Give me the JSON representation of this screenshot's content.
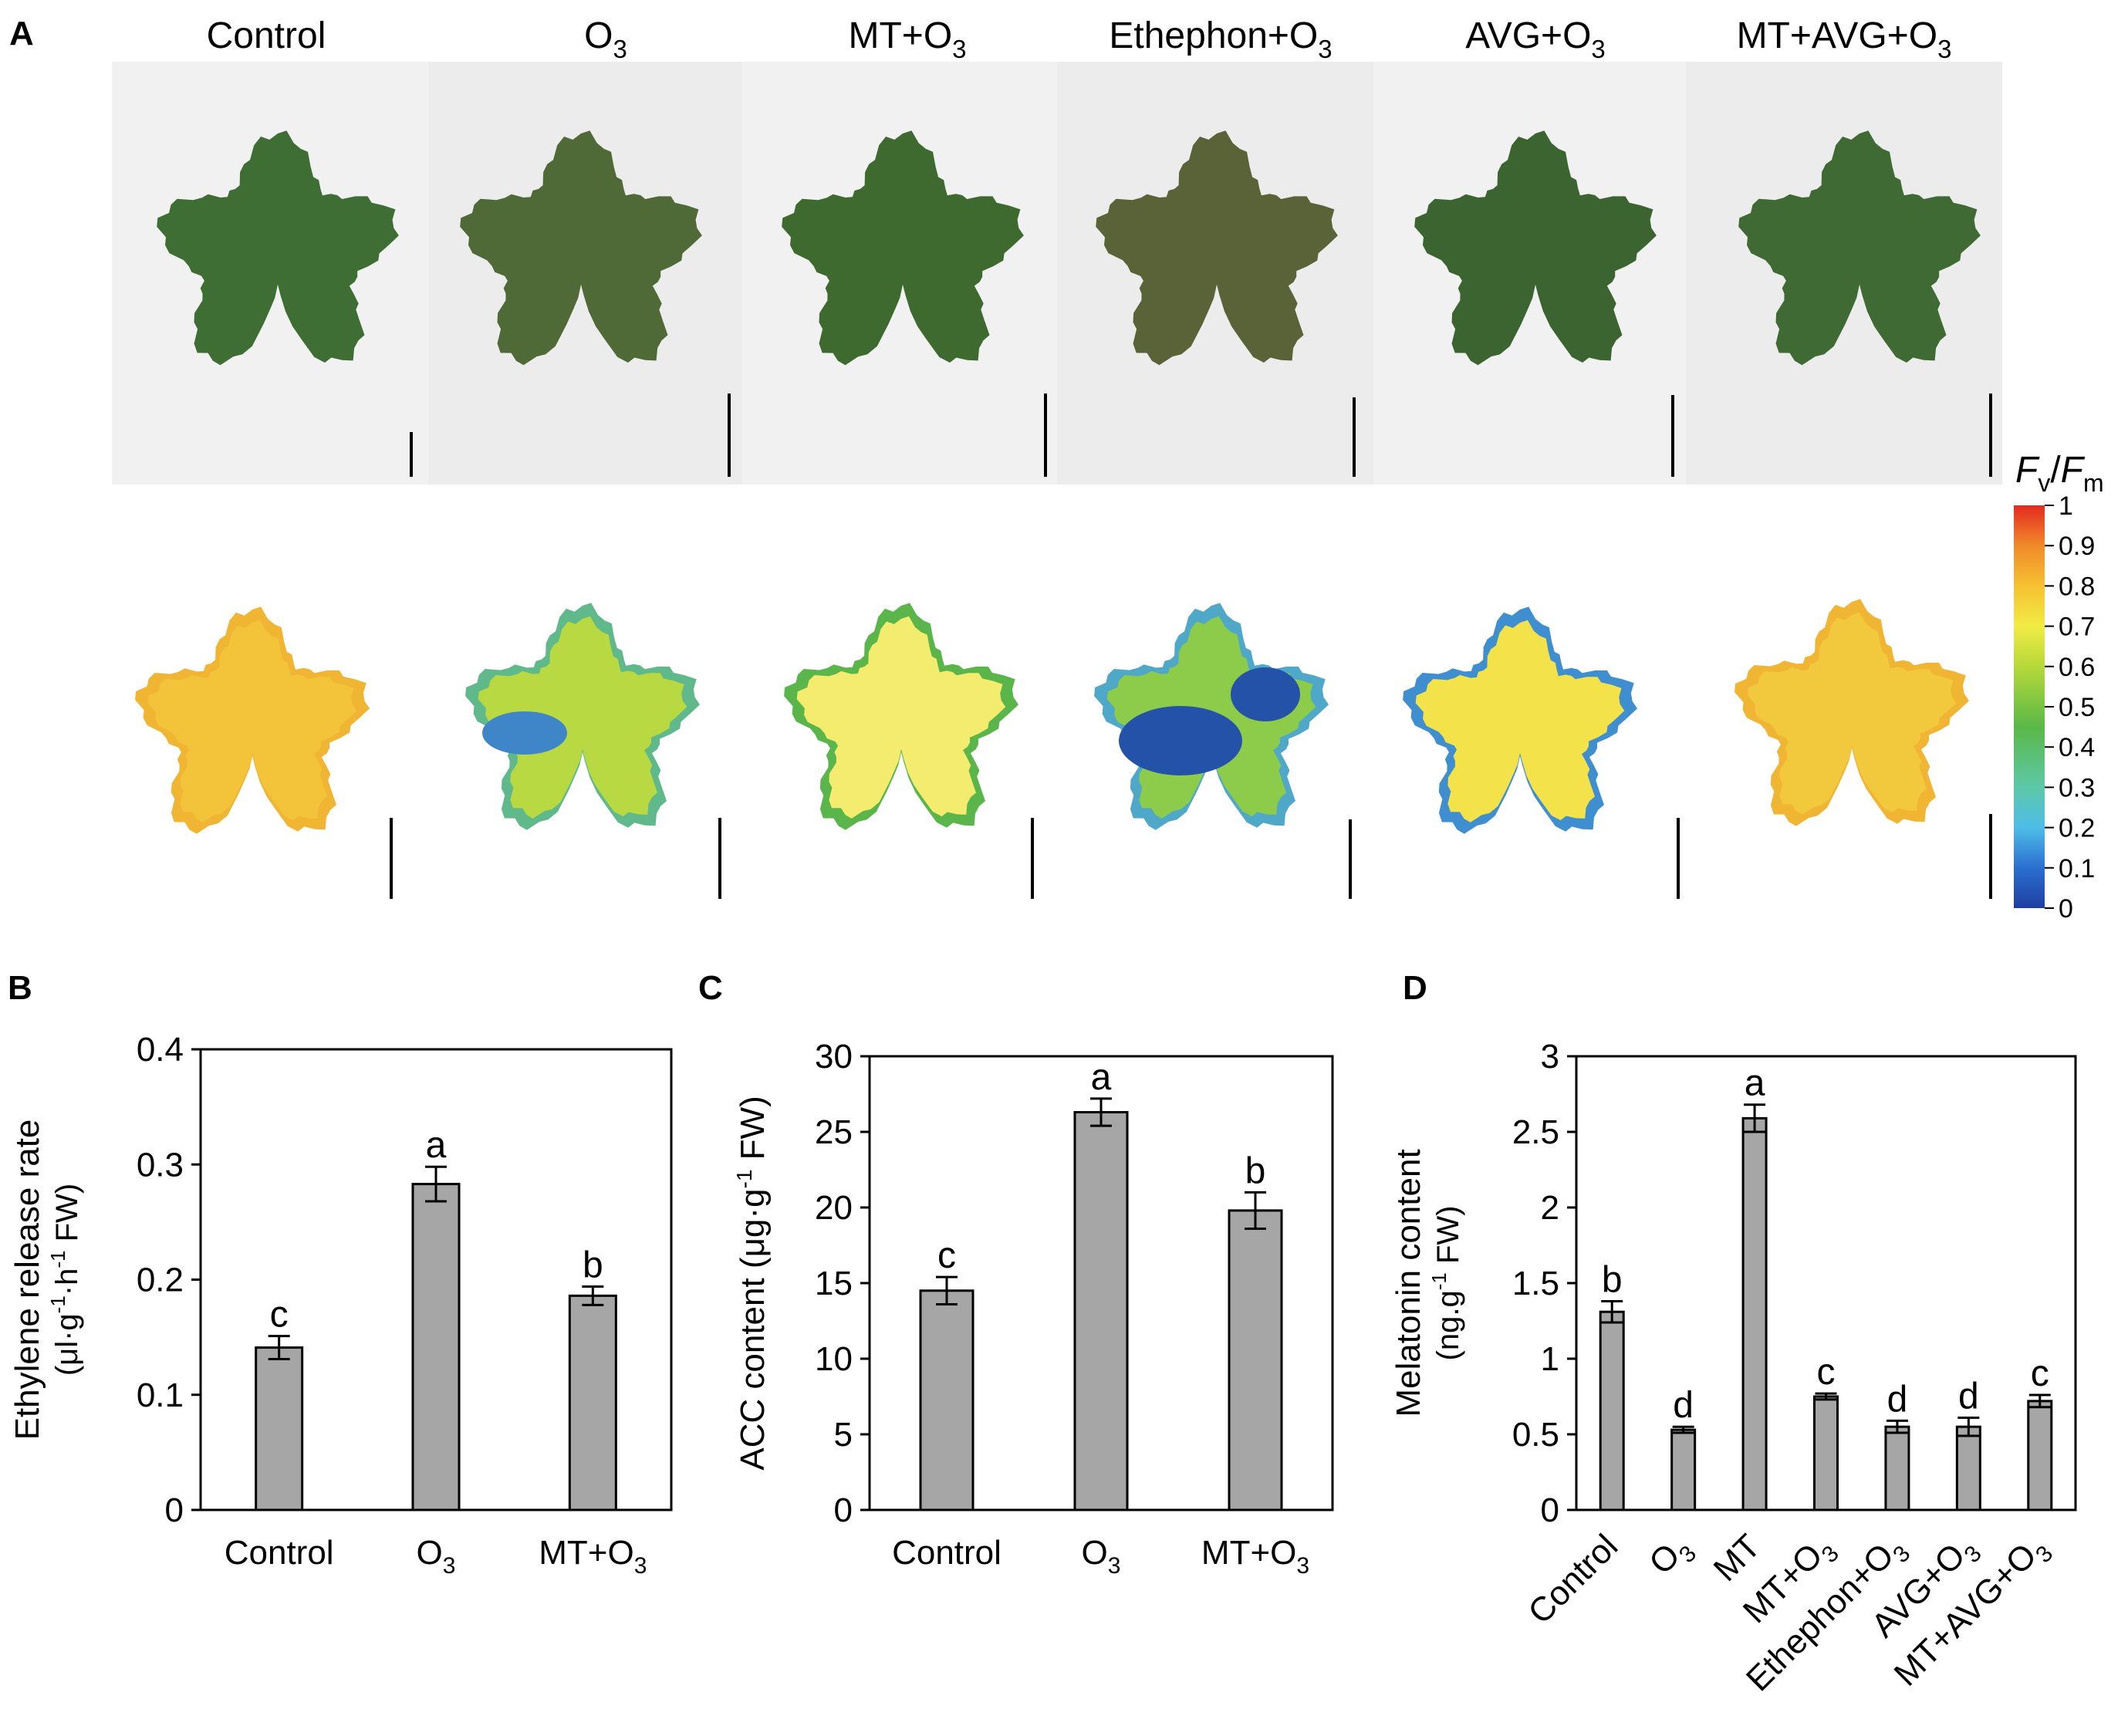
{
  "panel_a": {
    "letter": "A",
    "columns": [
      {
        "label": "Control",
        "sub": "",
        "tail": ""
      },
      {
        "label": "O",
        "sub": "3",
        "tail": ""
      },
      {
        "label": "MT+O",
        "sub": "3",
        "tail": ""
      },
      {
        "label": "Ethephon+O",
        "sub": "3",
        "tail": ""
      },
      {
        "label": "AVG+O",
        "sub": "3",
        "tail": ""
      },
      {
        "label": "MT+AVG+O",
        "sub": "3",
        "tail": ""
      }
    ],
    "colorbar": {
      "title_f": "F",
      "title_v": "v",
      "slash": "/",
      "title_m": "m",
      "ticks": [
        "1",
        "0.9",
        "0.8",
        "0.7",
        "0.6",
        "0.5",
        "0.4",
        "0.3",
        "0.2",
        "0.1",
        "0"
      ]
    }
  },
  "chart_data": [
    {
      "panel": "B",
      "type": "bar",
      "categories": [
        "Control",
        "O3",
        "MT+O3"
      ],
      "category_labels": [
        {
          "label": "Control",
          "sub": ""
        },
        {
          "label": "O",
          "sub": "3"
        },
        {
          "label": "MT+O",
          "sub": "3"
        }
      ],
      "values": [
        0.141,
        0.283,
        0.186
      ],
      "errors": [
        0.01,
        0.015,
        0.008
      ],
      "letters": [
        "c",
        "a",
        "b"
      ],
      "ylabel_line1": "Ethylene release rate",
      "ylabel_line2": {
        "open": "(μl·g",
        "sup1": "-1",
        "mid": "·h",
        "sup2": "-1",
        "close": " FW)"
      },
      "ylim": [
        0,
        0.4
      ],
      "yticks": [
        "0",
        "0.1",
        "0.2",
        "0.3",
        "0.4"
      ],
      "bar_color": "#a6a6a6",
      "grid": false
    },
    {
      "panel": "C",
      "type": "bar",
      "categories": [
        "Control",
        "O3",
        "MT+O3"
      ],
      "category_labels": [
        {
          "label": "Control",
          "sub": ""
        },
        {
          "label": "O",
          "sub": "3"
        },
        {
          "label": "MT+O",
          "sub": "3"
        }
      ],
      "values": [
        14.5,
        26.3,
        19.8
      ],
      "errors": [
        0.9,
        0.9,
        1.2
      ],
      "letters": [
        "c",
        "a",
        "b"
      ],
      "ylabel": {
        "open": "ACC content (μg·g",
        "sup": "-1",
        "close": " FW)"
      },
      "ylim": [
        0,
        30
      ],
      "yticks": [
        "0",
        "5",
        "10",
        "15",
        "20",
        "25",
        "30"
      ],
      "bar_color": "#a6a6a6",
      "grid": false
    },
    {
      "panel": "D",
      "type": "bar",
      "categories": [
        "Control",
        "O3",
        "MT",
        "MT+O3",
        "Ethephon+O3",
        "AVG+O3",
        "MT+AVG+O3"
      ],
      "category_labels": [
        {
          "label": "Control",
          "sub": ""
        },
        {
          "label": "O",
          "sub": "3"
        },
        {
          "label": "MT",
          "sub": ""
        },
        {
          "label": "MT+O",
          "sub": "3"
        },
        {
          "label": "Ethephon+O",
          "sub": "3"
        },
        {
          "label": "AVG+O",
          "sub": "3"
        },
        {
          "label": "MT+AVG+O",
          "sub": "3"
        }
      ],
      "values": [
        1.31,
        0.53,
        2.59,
        0.75,
        0.55,
        0.55,
        0.72
      ],
      "errors": [
        0.07,
        0.02,
        0.09,
        0.02,
        0.04,
        0.06,
        0.04
      ],
      "letters": [
        "b",
        "d",
        "a",
        "c",
        "d",
        "d",
        "c"
      ],
      "ylabel_line1": "Melatonin content",
      "ylabel_line2": {
        "open": "(ng.g",
        "sup": "-1",
        "close": " FW)"
      },
      "ylim": [
        0,
        3
      ],
      "yticks": [
        "0",
        "0.5",
        "1",
        "1.5",
        "2",
        "2.5",
        "3"
      ],
      "bar_color": "#a6a6a6",
      "grid": false
    }
  ]
}
